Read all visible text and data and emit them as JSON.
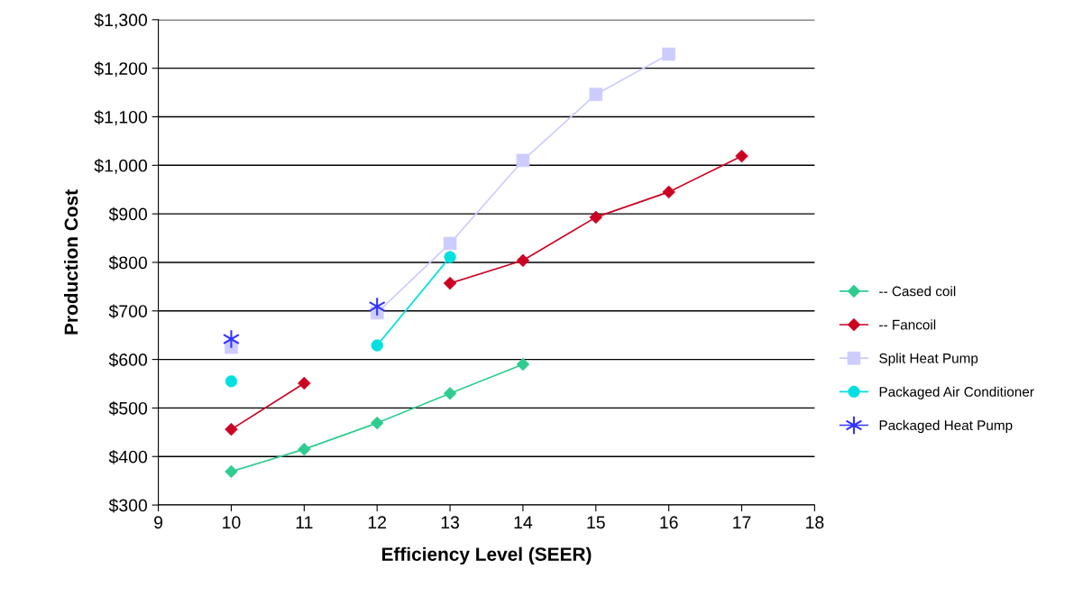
{
  "chart_data": {
    "type": "line",
    "xlabel": "Efficiency Level (SEER)",
    "ylabel": "Production Cost",
    "x": [
      10,
      11,
      12,
      13,
      14,
      15,
      16,
      17
    ],
    "series": [
      {
        "name": "-- Cased coil",
        "color": "#2ecc8f",
        "marker": "diamond",
        "values": [
          369,
          415,
          469,
          530,
          590,
          null,
          null,
          null
        ]
      },
      {
        "name": "-- Fancoil",
        "color": "#cc0022",
        "marker": "diamond",
        "values": [
          456,
          551,
          null,
          757,
          804,
          893,
          945,
          1019
        ]
      },
      {
        "name": "Split Heat Pump",
        "color": "#ccccff",
        "marker": "square",
        "values": [
          625,
          null,
          696,
          839,
          1010,
          1146,
          1229,
          null
        ]
      },
      {
        "name": "Packaged Air Conditioner",
        "color": "#00e0e0",
        "marker": "circle",
        "values": [
          555,
          null,
          629,
          811,
          null,
          null,
          null,
          null
        ]
      },
      {
        "name": "Packaged Heat Pump",
        "type": "scatter",
        "color": "#3333ff",
        "marker": "cross",
        "values": [
          642,
          null,
          709,
          null,
          null,
          null,
          null,
          null
        ]
      }
    ],
    "xlim": [
      9,
      18
    ],
    "xticks": [
      9,
      10,
      11,
      12,
      13,
      14,
      15,
      16,
      17,
      18
    ],
    "ylim": [
      300,
      1300
    ],
    "yticks": [
      {
        "value": 300,
        "label": "$300"
      },
      {
        "value": 400,
        "label": "$400"
      },
      {
        "value": 500,
        "label": "$500"
      },
      {
        "value": 600,
        "label": "$600"
      },
      {
        "value": 700,
        "label": "$700"
      },
      {
        "value": 800,
        "label": "$800"
      },
      {
        "value": 900,
        "label": "$900"
      },
      {
        "value": 1000,
        "label": "$1,000"
      },
      {
        "value": 1100,
        "label": "$1,100"
      },
      {
        "value": 1200,
        "label": "$1,200"
      },
      {
        "value": 1300,
        "label": "$1,300"
      }
    ],
    "grid": "y",
    "legend": "right",
    "line_style": "solid"
  }
}
